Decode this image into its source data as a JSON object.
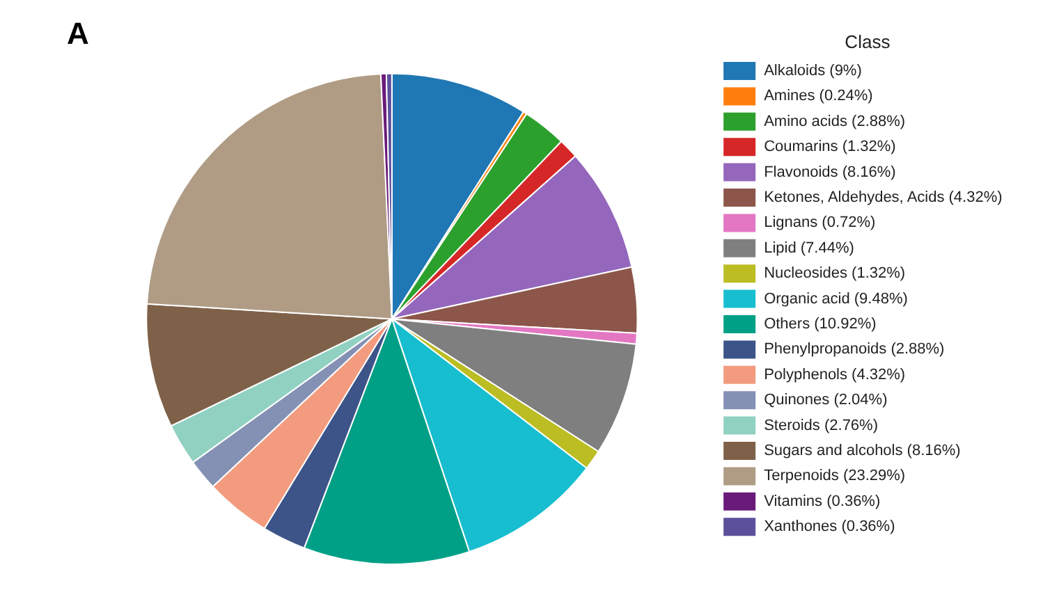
{
  "chart_data": {
    "type": "pie",
    "title": "A",
    "legend_title": "Class",
    "legend": "right",
    "categories": [
      "Alkaloids (9%)",
      "Amines (0.24%)",
      "Amino acids (2.88%)",
      "Coumarins (1.32%)",
      "Flavonoids (8.16%)",
      "Ketones, Aldehydes, Acids (4.32%)",
      "Lignans (0.72%)",
      "Lipid (7.44%)",
      "Nucleosides (1.32%)",
      "Organic acid (9.48%)",
      "Others (10.92%)",
      "Phenylpropanoids (2.88%)",
      "Polyphenols (4.32%)",
      "Quinones (2.04%)",
      "Steroids (2.76%)",
      "Sugars and alcohols (8.16%)",
      "Terpenoids (23.29%)",
      "Vitamins (0.36%)",
      "Xanthones (0.36%)"
    ],
    "values": [
      9,
      0.24,
      2.88,
      1.32,
      8.16,
      4.32,
      0.72,
      7.44,
      1.32,
      9.48,
      10.92,
      2.88,
      4.32,
      2.04,
      2.76,
      8.16,
      23.29,
      0.36,
      0.36
    ],
    "colors": [
      "#1f77b4",
      "#ff7f0e",
      "#2ca02c",
      "#d62728",
      "#9467bd",
      "#8c564b",
      "#e377c2",
      "#7f7f7f",
      "#bcbd22",
      "#17becf",
      "#00a087",
      "#3c5488",
      "#f39b7f",
      "#8491b4",
      "#91d1c2",
      "#7e6148",
      "#b09c85",
      "#6a1b7a",
      "#5c509c"
    ]
  }
}
